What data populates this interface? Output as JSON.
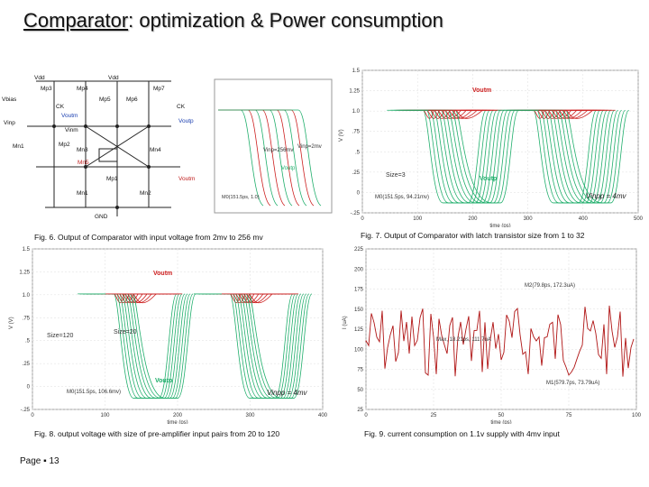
{
  "slide": {
    "title_part1": "Comparator",
    "title_part2": ": optimization & Power consumption",
    "page_label": "Page ▪ 13"
  },
  "schematic": {
    "labels": [
      "Vdd",
      "Mp3",
      "Mp4",
      "Vdd",
      "Mp7",
      "Vbias",
      "Mp5",
      "Mp6",
      "CK",
      "CK",
      "Voutm",
      "Voutp",
      "Vinp",
      "Vinm",
      "Mn1",
      "Mp2",
      "Mn3",
      "Mn4",
      "Mn5",
      "Mp1",
      "Voutm",
      "Mn1",
      "Mn2",
      "GND"
    ]
  },
  "fig6": {
    "caption": "Fig. 6. Output of Comparator with input voltage from 2mv to 256 mv",
    "annot_a": "Vinp=256mv",
    "annot_b": "Vinp=2mv",
    "annot_out": "Voutp",
    "marker": "M0(151.5ps, 1.0)"
  },
  "fig7": {
    "caption": "Fig. 7. Output of Comparator with latch transistor size from 1 to 32",
    "label_top": "Voutm",
    "label_bot": "Voutp",
    "size_label": "Size=3",
    "marker": "M0(151.5ps, 94.21mv)",
    "vinp_label": "Vinpp = 4mv",
    "y_label": "V (V)",
    "x_label": "time (ps)",
    "y_ticks": [
      "1.5",
      "1.25",
      "1.0",
      ".75",
      ".5",
      ".25",
      "0",
      "-.25"
    ],
    "x_ticks": [
      "0",
      "100",
      "200",
      "300",
      "400",
      "500"
    ]
  },
  "fig8": {
    "caption": "Fig. 8. output voltage with size of pre-amplifier input pairs from 20 to 120",
    "label_top": "Voutm",
    "label_bot": "Voutp",
    "size_a": "Size=120",
    "size_b": "Size=20",
    "marker": "M0(151.5ps, 106.6mv)",
    "vinp_label": "Vinpp = 4mv",
    "y_label": "V (V)",
    "x_label": "time (ps)",
    "y_ticks": [
      "1.5",
      "1.25",
      "1.0",
      ".75",
      ".5",
      ".25",
      "0",
      "-.25"
    ],
    "x_ticks": [
      "0",
      "100",
      "200",
      "300",
      "400"
    ]
  },
  "fig9": {
    "caption": "Fig. 9. current consumption on 1.1v supply with 4mv input",
    "marker_top": "M2(79.8ps, 172.3uA)",
    "marker_mid": "Max, 18.21ps, 111.7uA",
    "marker_bot": "M1(579.7ps, 73.79uA)",
    "y_label": "I (uA)",
    "x_label": "time (ps)",
    "y_ticks": [
      "225",
      "200",
      "175",
      "150",
      "125",
      "100",
      "75",
      "50",
      "25"
    ],
    "x_ticks": [
      "0",
      "25",
      "50",
      "75",
      "100"
    ]
  },
  "colors": {
    "voutm": "#cc1f1f",
    "voutp": "#1fae6b",
    "current": "#b01515",
    "annotation": "#333333"
  }
}
